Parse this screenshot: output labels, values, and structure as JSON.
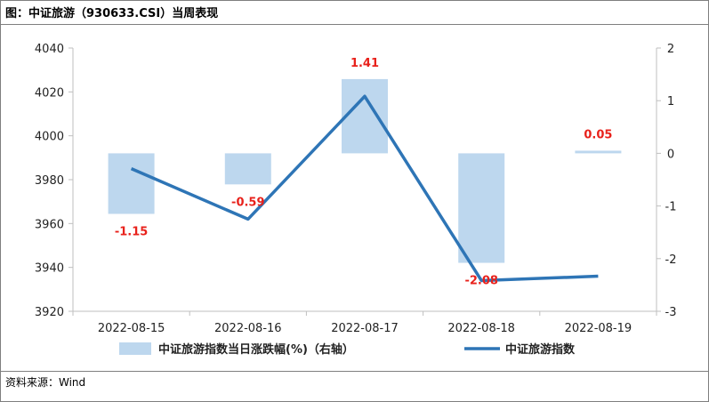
{
  "title": "图：中证旅游（930633.CSI）当周表现",
  "source": "资料来源：Wind",
  "chart_data": {
    "type": "bar+line",
    "categories": [
      "2022-08-15",
      "2022-08-16",
      "2022-08-17",
      "2022-08-18",
      "2022-08-19"
    ],
    "series": [
      {
        "name": "中证旅游指数当日涨跌幅(%)（右轴）",
        "kind": "bar",
        "axis": "right",
        "color": "#bdd7ee",
        "values": [
          -1.15,
          -0.59,
          1.41,
          -2.08,
          0.05
        ],
        "labels": [
          "-1.15",
          "-0.59",
          "1.41",
          "-2.08",
          "0.05"
        ]
      },
      {
        "name": "中证旅游指数",
        "kind": "line",
        "axis": "left",
        "color": "#2e75b6",
        "values": [
          3985,
          3962,
          4018,
          3934,
          3936
        ]
      }
    ],
    "y_left": {
      "min": 3920,
      "max": 4040,
      "ticks": [
        3920,
        3940,
        3960,
        3980,
        4000,
        4020,
        4040
      ]
    },
    "y_right": {
      "min": -3,
      "max": 2,
      "ticks": [
        -3,
        -2,
        -1,
        0,
        1,
        2
      ]
    },
    "legend_position": "bottom",
    "label_color": "#e8211b"
  }
}
